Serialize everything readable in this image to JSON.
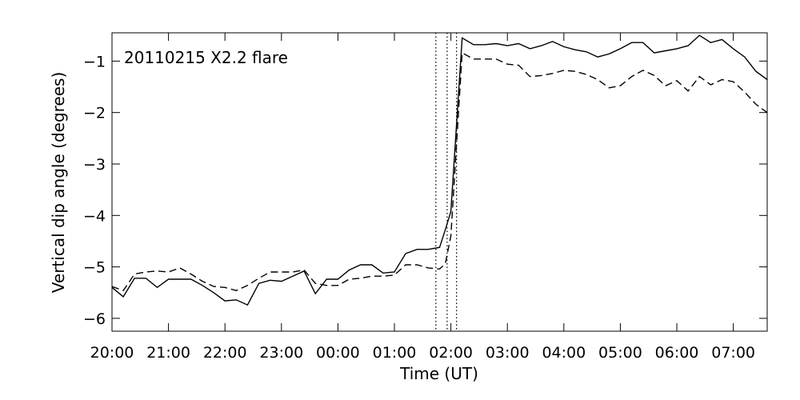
{
  "chart_data": {
    "type": "line",
    "annotation": "20110215 X2.2 flare",
    "xlabel": "Time (UT)",
    "ylabel": "Vertical dip angle (degrees)",
    "xlim": [
      "2011-02-14 20:00",
      "2011-02-15 07:36"
    ],
    "ylim": [
      -6.25,
      -0.45
    ],
    "grid": false,
    "x_ticks": [
      {
        "t": "2011-02-14 20:00",
        "label": "20:00"
      },
      {
        "t": "2011-02-14 21:00",
        "label": "21:00"
      },
      {
        "t": "2011-02-14 22:00",
        "label": "22:00"
      },
      {
        "t": "2011-02-14 23:00",
        "label": "23:00"
      },
      {
        "t": "2011-02-15 00:00",
        "label": "00:00"
      },
      {
        "t": "2011-02-15 01:00",
        "label": "01:00"
      },
      {
        "t": "2011-02-15 02:00",
        "label": "02:00"
      },
      {
        "t": "2011-02-15 03:00",
        "label": "03:00"
      },
      {
        "t": "2011-02-15 04:00",
        "label": "04:00"
      },
      {
        "t": "2011-02-15 05:00",
        "label": "05:00"
      },
      {
        "t": "2011-02-15 06:00",
        "label": "06:00"
      },
      {
        "t": "2011-02-15 07:00",
        "label": "07:00"
      }
    ],
    "y_ticks": [
      {
        "v": -1,
        "label": "−1"
      },
      {
        "v": -2,
        "label": "−2"
      },
      {
        "v": -3,
        "label": "−3"
      },
      {
        "v": -4,
        "label": "−4"
      },
      {
        "v": -5,
        "label": "−5"
      },
      {
        "v": -6,
        "label": "−6"
      }
    ],
    "vertical_lines": [
      {
        "t": "2011-02-15 01:44",
        "style": "dotted"
      },
      {
        "t": "2011-02-15 01:56",
        "style": "dotted"
      },
      {
        "t": "2011-02-15 02:06",
        "style": "dotted"
      }
    ],
    "series": [
      {
        "style": "solid",
        "color": "#000000",
        "points": [
          [
            "2011-02-14 20:00",
            -5.4
          ],
          [
            "2011-02-14 20:12",
            -5.58
          ],
          [
            "2011-02-14 20:24",
            -5.22
          ],
          [
            "2011-02-14 20:36",
            -5.22
          ],
          [
            "2011-02-14 20:48",
            -5.4
          ],
          [
            "2011-02-14 21:00",
            -5.24
          ],
          [
            "2011-02-14 21:12",
            -5.24
          ],
          [
            "2011-02-14 21:24",
            -5.24
          ],
          [
            "2011-02-14 21:36",
            -5.36
          ],
          [
            "2011-02-14 21:48",
            -5.5
          ],
          [
            "2011-02-14 22:00",
            -5.66
          ],
          [
            "2011-02-14 22:12",
            -5.64
          ],
          [
            "2011-02-14 22:24",
            -5.74
          ],
          [
            "2011-02-14 22:36",
            -5.32
          ],
          [
            "2011-02-14 22:48",
            -5.26
          ],
          [
            "2011-02-14 23:00",
            -5.28
          ],
          [
            "2011-02-14 23:12",
            -5.18
          ],
          [
            "2011-02-14 23:24",
            -5.08
          ],
          [
            "2011-02-14 23:36",
            -5.52
          ],
          [
            "2011-02-14 23:48",
            -5.24
          ],
          [
            "2011-02-15 00:00",
            -5.24
          ],
          [
            "2011-02-15 00:12",
            -5.06
          ],
          [
            "2011-02-15 00:24",
            -4.96
          ],
          [
            "2011-02-15 00:36",
            -4.96
          ],
          [
            "2011-02-15 00:48",
            -5.12
          ],
          [
            "2011-02-15 01:00",
            -5.1
          ],
          [
            "2011-02-15 01:12",
            -4.74
          ],
          [
            "2011-02-15 01:24",
            -4.66
          ],
          [
            "2011-02-15 01:36",
            -4.66
          ],
          [
            "2011-02-15 01:48",
            -4.62
          ],
          [
            "2011-02-15 01:54",
            -4.28
          ],
          [
            "2011-02-15 02:00",
            -3.92
          ],
          [
            "2011-02-15 02:12",
            -0.55
          ],
          [
            "2011-02-15 02:24",
            -0.68
          ],
          [
            "2011-02-15 02:36",
            -0.68
          ],
          [
            "2011-02-15 02:48",
            -0.66
          ],
          [
            "2011-02-15 03:00",
            -0.7
          ],
          [
            "2011-02-15 03:12",
            -0.66
          ],
          [
            "2011-02-15 03:24",
            -0.76
          ],
          [
            "2011-02-15 03:36",
            -0.7
          ],
          [
            "2011-02-15 03:48",
            -0.62
          ],
          [
            "2011-02-15 04:00",
            -0.72
          ],
          [
            "2011-02-15 04:12",
            -0.78
          ],
          [
            "2011-02-15 04:24",
            -0.82
          ],
          [
            "2011-02-15 04:36",
            -0.92
          ],
          [
            "2011-02-15 04:48",
            -0.86
          ],
          [
            "2011-02-15 05:00",
            -0.76
          ],
          [
            "2011-02-15 05:12",
            -0.64
          ],
          [
            "2011-02-15 05:24",
            -0.64
          ],
          [
            "2011-02-15 05:36",
            -0.84
          ],
          [
            "2011-02-15 05:48",
            -0.8
          ],
          [
            "2011-02-15 06:00",
            -0.76
          ],
          [
            "2011-02-15 06:12",
            -0.7
          ],
          [
            "2011-02-15 06:24",
            -0.5
          ],
          [
            "2011-02-15 06:36",
            -0.64
          ],
          [
            "2011-02-15 06:48",
            -0.58
          ],
          [
            "2011-02-15 07:00",
            -0.76
          ],
          [
            "2011-02-15 07:12",
            -0.92
          ],
          [
            "2011-02-15 07:24",
            -1.2
          ],
          [
            "2011-02-15 07:36",
            -1.36
          ]
        ]
      },
      {
        "style": "dashed",
        "color": "#000000",
        "points": [
          [
            "2011-02-14 20:00",
            -5.38
          ],
          [
            "2011-02-14 20:12",
            -5.46
          ],
          [
            "2011-02-14 20:24",
            -5.14
          ],
          [
            "2011-02-14 20:36",
            -5.1
          ],
          [
            "2011-02-14 20:48",
            -5.08
          ],
          [
            "2011-02-14 21:00",
            -5.1
          ],
          [
            "2011-02-14 21:12",
            -5.02
          ],
          [
            "2011-02-14 21:24",
            -5.14
          ],
          [
            "2011-02-14 21:36",
            -5.28
          ],
          [
            "2011-02-14 21:48",
            -5.38
          ],
          [
            "2011-02-14 22:00",
            -5.4
          ],
          [
            "2011-02-14 22:12",
            -5.46
          ],
          [
            "2011-02-14 22:24",
            -5.36
          ],
          [
            "2011-02-14 22:36",
            -5.22
          ],
          [
            "2011-02-14 22:48",
            -5.1
          ],
          [
            "2011-02-14 23:00",
            -5.1
          ],
          [
            "2011-02-14 23:12",
            -5.1
          ],
          [
            "2011-02-14 23:24",
            -5.06
          ],
          [
            "2011-02-14 23:36",
            -5.32
          ],
          [
            "2011-02-14 23:48",
            -5.36
          ],
          [
            "2011-02-15 00:00",
            -5.36
          ],
          [
            "2011-02-15 00:12",
            -5.24
          ],
          [
            "2011-02-15 00:24",
            -5.22
          ],
          [
            "2011-02-15 00:36",
            -5.18
          ],
          [
            "2011-02-15 00:48",
            -5.18
          ],
          [
            "2011-02-15 01:00",
            -5.16
          ],
          [
            "2011-02-15 01:12",
            -4.96
          ],
          [
            "2011-02-15 01:24",
            -4.96
          ],
          [
            "2011-02-15 01:36",
            -5.02
          ],
          [
            "2011-02-15 01:48",
            -5.04
          ],
          [
            "2011-02-15 01:54",
            -4.94
          ],
          [
            "2011-02-15 02:00",
            -4.4
          ],
          [
            "2011-02-15 02:12",
            -0.84
          ],
          [
            "2011-02-15 02:24",
            -0.96
          ],
          [
            "2011-02-15 02:36",
            -0.96
          ],
          [
            "2011-02-15 02:48",
            -0.96
          ],
          [
            "2011-02-15 03:00",
            -1.06
          ],
          [
            "2011-02-15 03:12",
            -1.08
          ],
          [
            "2011-02-15 03:24",
            -1.3
          ],
          [
            "2011-02-15 03:36",
            -1.28
          ],
          [
            "2011-02-15 03:48",
            -1.24
          ],
          [
            "2011-02-15 04:00",
            -1.18
          ],
          [
            "2011-02-15 04:12",
            -1.2
          ],
          [
            "2011-02-15 04:24",
            -1.26
          ],
          [
            "2011-02-15 04:36",
            -1.36
          ],
          [
            "2011-02-15 04:48",
            -1.52
          ],
          [
            "2011-02-15 05:00",
            -1.48
          ],
          [
            "2011-02-15 05:12",
            -1.3
          ],
          [
            "2011-02-15 05:24",
            -1.18
          ],
          [
            "2011-02-15 05:36",
            -1.28
          ],
          [
            "2011-02-15 05:48",
            -1.48
          ],
          [
            "2011-02-15 06:00",
            -1.38
          ],
          [
            "2011-02-15 06:12",
            -1.58
          ],
          [
            "2011-02-15 06:24",
            -1.3
          ],
          [
            "2011-02-15 06:36",
            -1.46
          ],
          [
            "2011-02-15 06:48",
            -1.36
          ],
          [
            "2011-02-15 07:00",
            -1.4
          ],
          [
            "2011-02-15 07:12",
            -1.6
          ],
          [
            "2011-02-15 07:24",
            -1.84
          ],
          [
            "2011-02-15 07:36",
            -2.0
          ]
        ]
      }
    ]
  }
}
